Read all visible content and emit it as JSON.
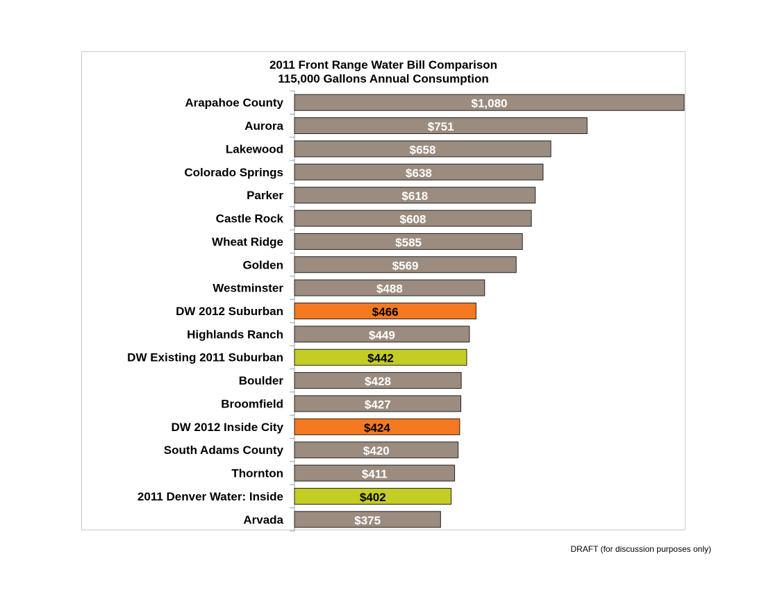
{
  "chart_data": {
    "type": "bar",
    "orientation": "horizontal",
    "title": "2011 Front Range Water Bill Comparison",
    "subtitle": "115,000 Gallons Annual Consumption",
    "xlim": [
      0,
      1000
    ],
    "grid": false,
    "legend": "none",
    "categories": [
      "Arapahoe County",
      "Aurora",
      "Lakewood",
      "Colorado Springs",
      "Parker",
      "Castle Rock",
      "Wheat Ridge",
      "Golden",
      "Westminster",
      "DW 2012 Suburban",
      "Highlands Ranch",
      "DW Existing 2011 Suburban",
      "Boulder",
      "Broomfield",
      "DW 2012 Inside City",
      "South Adams County",
      "Thornton",
      "2011 Denver Water: Inside",
      "Arvada"
    ],
    "values": [
      1080,
      751,
      658,
      638,
      618,
      608,
      585,
      569,
      488,
      466,
      449,
      442,
      428,
      427,
      424,
      420,
      411,
      402,
      375
    ],
    "data_labels": [
      "$1,080",
      "$751",
      "$658",
      "$638",
      "$618",
      "$608",
      "$585",
      "$569",
      "$488",
      "$466",
      "$449",
      "$442",
      "$428",
      "$427",
      "$424",
      "$420",
      "$411",
      "$402",
      "$375"
    ],
    "highlight": [
      "default",
      "default",
      "default",
      "default",
      "default",
      "default",
      "default",
      "default",
      "default",
      "proposed",
      "default",
      "existing",
      "default",
      "default",
      "proposed",
      "default",
      "default",
      "existing",
      "default"
    ],
    "colors": {
      "default": "#9b8c7f",
      "proposed": "#f47920",
      "existing": "#c3cd23"
    }
  },
  "footer": "DRAFT (for discussion purposes only)"
}
